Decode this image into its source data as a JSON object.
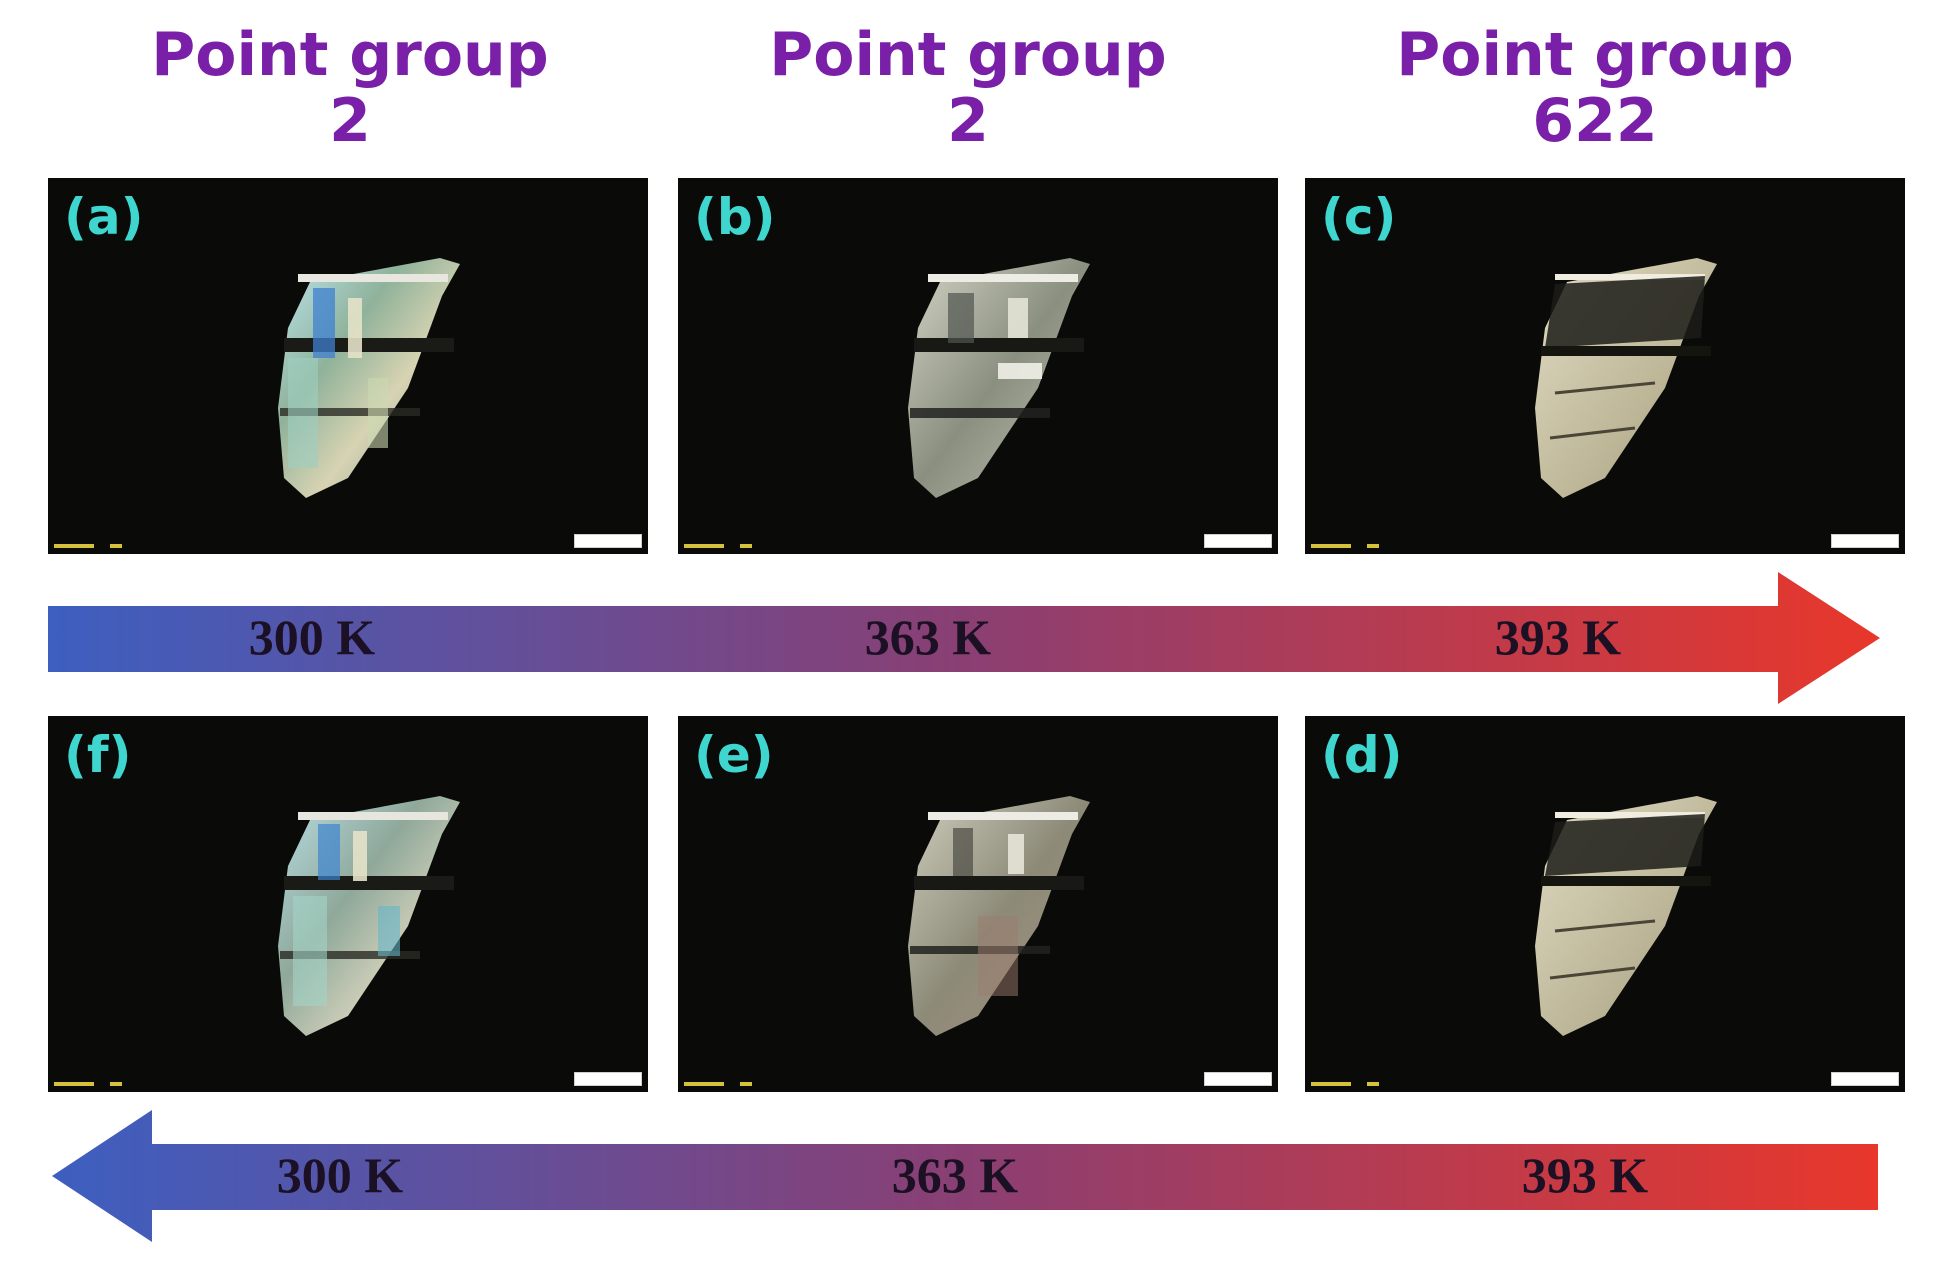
{
  "titles": [
    {
      "line1": "Point group",
      "line2": "2"
    },
    {
      "line1": "Point group",
      "line2": "2"
    },
    {
      "line1": "Point group",
      "line2": "622"
    }
  ],
  "panels": {
    "a": "(a)",
    "b": "(b)",
    "c": "(c)",
    "d": "(d)",
    "e": "(e)",
    "f": "(f)"
  },
  "heating_arrow": {
    "direction": "right",
    "temps": [
      "300 K",
      "363 K",
      "393 K"
    ],
    "colors": {
      "start": "#3d5fc0",
      "mid": "#8a3f73",
      "end": "#e8372b"
    }
  },
  "cooling_arrow": {
    "direction": "left",
    "temps": [
      "300 K",
      "363 K",
      "393 K"
    ],
    "colors": {
      "start": "#3d5fc0",
      "mid": "#8a3f73",
      "end": "#e8372b"
    }
  },
  "colors": {
    "title": "#7a1fa8",
    "panel_label": "#3fd6cf",
    "panel_bg": "#0a0a08"
  }
}
